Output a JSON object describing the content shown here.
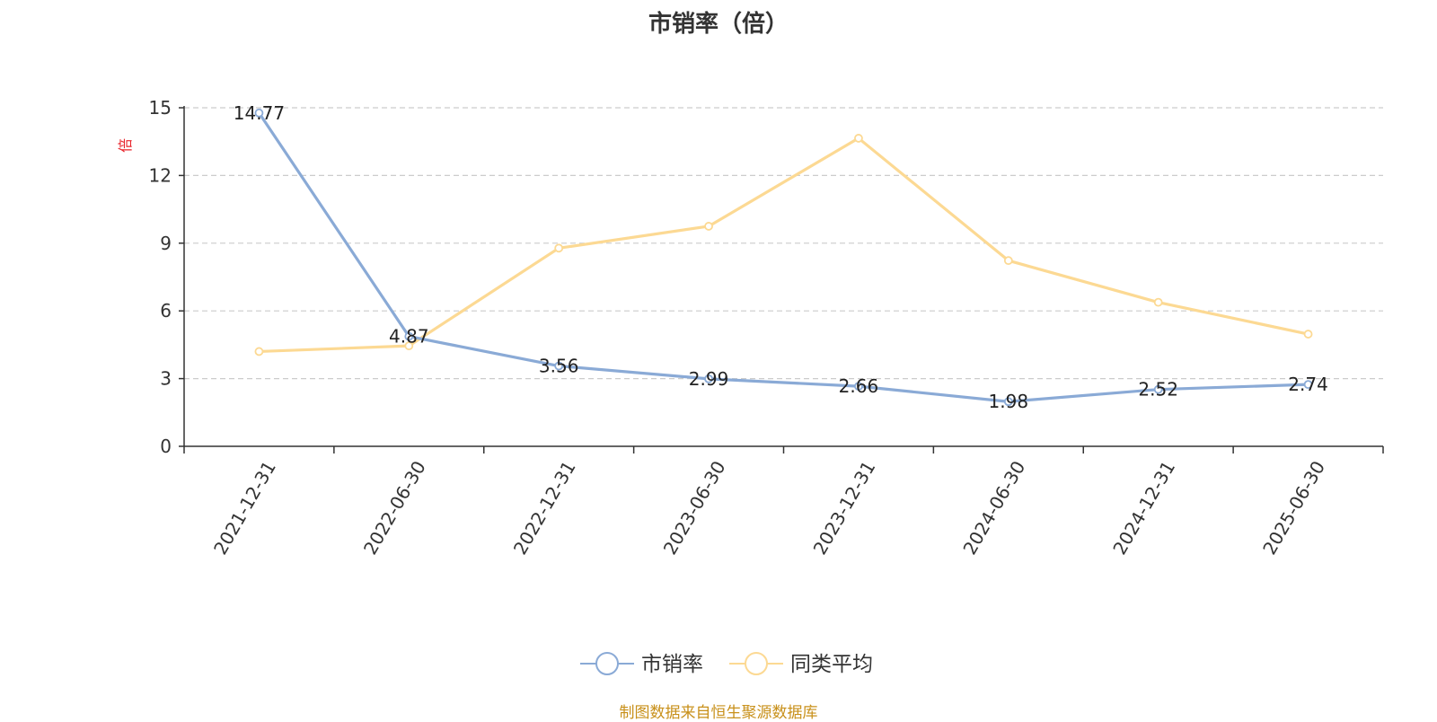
{
  "colors": {
    "series1": "#8aaad6",
    "series2": "#fcd993",
    "axis": "#333333",
    "grid": "#cccccc",
    "unit": "#e8242b",
    "source": "#c8901a"
  },
  "source_note": "制图数据来自恒生聚源数据库",
  "chart_data": {
    "type": "line",
    "title": "市销率（倍）",
    "ylabel": "倍",
    "ylim": [
      0,
      15
    ],
    "yticks": [
      0,
      3,
      6,
      9,
      12,
      15
    ],
    "grid": true,
    "legend_position": "bottom-center",
    "categories": [
      "2021-12-31",
      "2022-06-30",
      "2022-12-31",
      "2023-06-30",
      "2023-12-31",
      "2024-06-30",
      "2024-12-31",
      "2025-06-30"
    ],
    "series": [
      {
        "name": "市销率",
        "values": [
          14.77,
          4.87,
          3.56,
          2.99,
          2.66,
          1.98,
          2.52,
          2.74
        ],
        "labels": [
          "14.77",
          "4.87",
          "3.56",
          "2.99",
          "2.66",
          "1.98",
          "2.52",
          "2.74"
        ]
      },
      {
        "name": "同类平均",
        "values": [
          4.2,
          4.45,
          8.78,
          9.75,
          13.65,
          8.23,
          6.38,
          4.97
        ]
      }
    ]
  }
}
